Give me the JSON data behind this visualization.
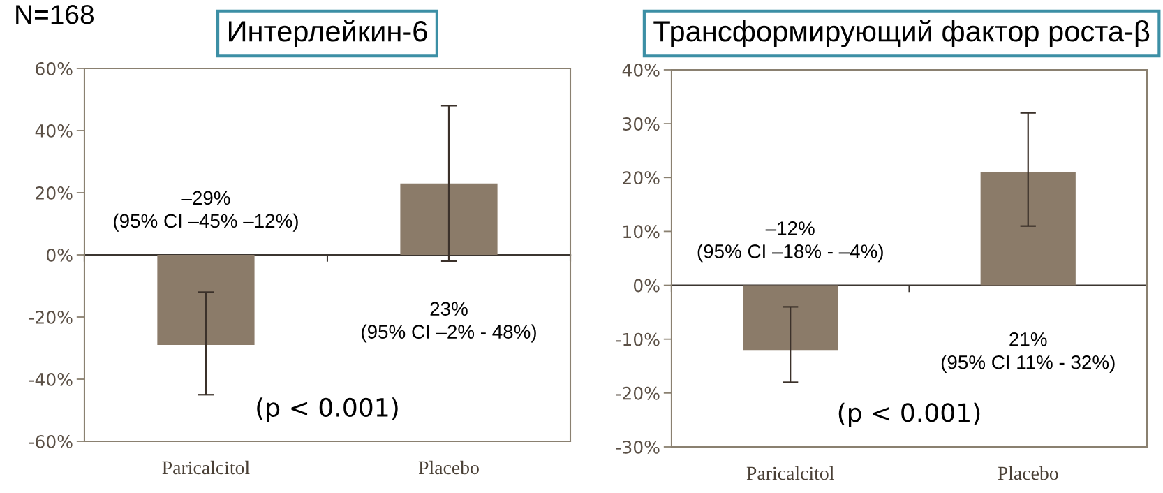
{
  "chart_data": [
    {
      "type": "bar",
      "title": "Интерлейкин-6",
      "categories": [
        "Paricalcitol",
        "Placebo"
      ],
      "values": [
        -29,
        23
      ],
      "color": "#8b7b69",
      "errors": [
        [
          -45,
          -12
        ],
        [
          -2,
          48
        ]
      ],
      "value_labels": [
        "–29%\n(95% CI –45% –12%)",
        "23%\n(95% CI –2% - 48%)"
      ],
      "ylim": [
        -60,
        60
      ],
      "yticks": [
        {
          "value": -60,
          "label": "-60%"
        },
        {
          "value": -40,
          "label": "-40%"
        },
        {
          "value": -20,
          "label": "-20%"
        },
        {
          "value": 0,
          "label": "0%"
        },
        {
          "value": 20,
          "label": "20%"
        },
        {
          "value": 40,
          "label": "40%"
        },
        {
          "value": 60,
          "label": "60%"
        }
      ],
      "annotations": [
        "N=168",
        "(p < 0.001)"
      ]
    },
    {
      "type": "bar",
      "title": "Трансформирующий фактор роста-β",
      "categories": [
        "Paricalcitol",
        "Placebo"
      ],
      "values": [
        -12,
        21
      ],
      "color": "#8b7b69",
      "errors": [
        [
          -18,
          -4
        ],
        [
          11,
          32
        ]
      ],
      "value_labels": [
        "–12%\n(95% CI –18% - –4%)",
        "21%\n(95% CI 11% - 32%)"
      ],
      "ylim": [
        -30,
        40
      ],
      "yticks": [
        {
          "value": -30,
          "label": "-30%"
        },
        {
          "value": -20,
          "label": "-20%"
        },
        {
          "value": -10,
          "label": "-10%"
        },
        {
          "value": 0,
          "label": "0%"
        },
        {
          "value": 10,
          "label": "10%"
        },
        {
          "value": 20,
          "label": "20%"
        },
        {
          "value": 30,
          "label": "30%"
        },
        {
          "value": 40,
          "label": "40%"
        }
      ],
      "annotations": [
        "(p < 0.001)"
      ]
    }
  ]
}
